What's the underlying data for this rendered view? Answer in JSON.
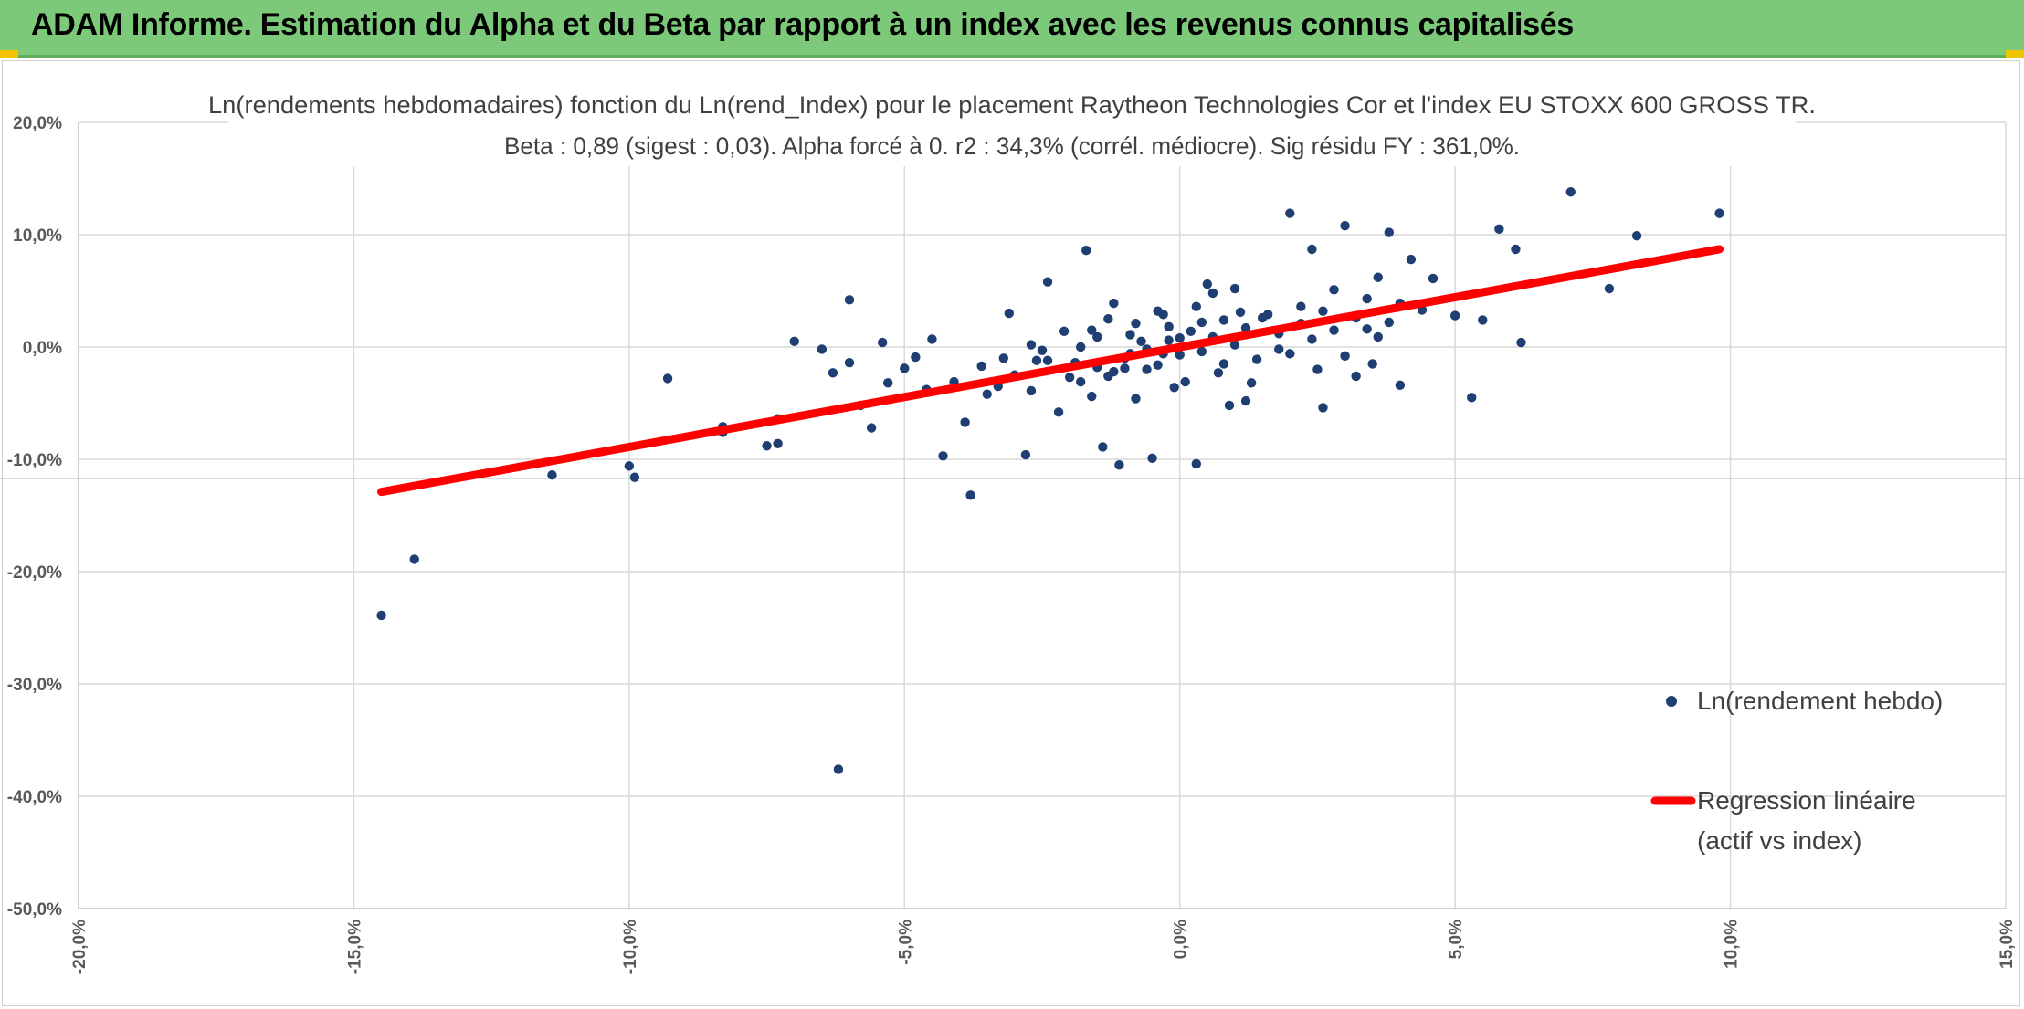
{
  "banner": {
    "title": "ADAM Informe. Estimation du Alpha et du Beta par rapport à un index avec les revenus connus capitalisés"
  },
  "colors": {
    "banner": "#7dc97a",
    "points": "#1f3f73",
    "regression": "#ff0000",
    "grid": "#d9d9d9",
    "axis_text": "#595959"
  },
  "chart_data": {
    "type": "scatter",
    "title": "Ln(rendements hebdomadaires) fonction du Ln(rend_Index) pour le placement Raytheon Technologies Cor et l'index EU STOXX 600 GROSS TR.",
    "subtitle": "Beta : 0,89 (sigest : 0,03). Alpha forcé à 0. r2 : 34,3% (corrél. médiocre). Sig résidu FY : 361,0%.",
    "xlabel": "",
    "ylabel": "",
    "xlim": [
      -20,
      15
    ],
    "ylim": [
      -50,
      20
    ],
    "x_ticks": [
      -20,
      -15,
      -10,
      -5,
      0,
      5,
      10,
      15
    ],
    "y_ticks": [
      20,
      10,
      0,
      -10,
      -20,
      -30,
      -40,
      -50
    ],
    "x_tick_labels": [
      "-20,0%",
      "-15,0%",
      "-10,0%",
      "-5,0%",
      "0,0%",
      "5,0%",
      "10,0%",
      "15,0%"
    ],
    "y_tick_labels": [
      "20,0%",
      "10,0%",
      "0,0%",
      "-10,0%",
      "-20,0%",
      "-30,0%",
      "-40,0%",
      "-50,0%"
    ],
    "grid": true,
    "legend_position": "right",
    "reference_line_y": -11.7,
    "series": [
      {
        "name": "Ln(rendement hebdo)",
        "kind": "scatter",
        "color": "#1f3f73",
        "points": [
          [
            -14.5,
            -23.9
          ],
          [
            -13.9,
            -18.9
          ],
          [
            -11.4,
            -11.4
          ],
          [
            -10.0,
            -10.6
          ],
          [
            -9.9,
            -11.6
          ],
          [
            -9.3,
            -2.8
          ],
          [
            -8.3,
            -7.6
          ],
          [
            -8.3,
            -7.1
          ],
          [
            -7.5,
            -8.8
          ],
          [
            -7.3,
            -8.6
          ],
          [
            -7.3,
            -6.4
          ],
          [
            -7.0,
            0.5
          ],
          [
            -6.5,
            -0.2
          ],
          [
            -6.3,
            -2.3
          ],
          [
            -6.2,
            -37.6
          ],
          [
            -6.0,
            4.2
          ],
          [
            -6.0,
            -1.4
          ],
          [
            -5.8,
            -5.2
          ],
          [
            -5.6,
            -7.2
          ],
          [
            -5.4,
            0.4
          ],
          [
            -5.3,
            -3.2
          ],
          [
            -5.0,
            -1.9
          ],
          [
            -4.8,
            -0.9
          ],
          [
            -4.6,
            -3.8
          ],
          [
            -4.5,
            0.7
          ],
          [
            -4.3,
            -9.7
          ],
          [
            -4.1,
            -3.1
          ],
          [
            -3.9,
            -6.7
          ],
          [
            -3.8,
            -13.2
          ],
          [
            -3.6,
            -1.7
          ],
          [
            -3.5,
            -4.2
          ],
          [
            -3.3,
            -3.5
          ],
          [
            -3.1,
            3.0
          ],
          [
            -3.0,
            -2.5
          ],
          [
            -2.8,
            -9.6
          ],
          [
            -2.7,
            -3.9
          ],
          [
            -2.6,
            -1.2
          ],
          [
            -2.5,
            -0.3
          ],
          [
            -2.4,
            5.8
          ],
          [
            -2.2,
            -5.8
          ],
          [
            -2.1,
            1.4
          ],
          [
            -2.0,
            -2.7
          ],
          [
            -1.9,
            -1.4
          ],
          [
            -1.8,
            0.0
          ],
          [
            -1.7,
            8.6
          ],
          [
            -1.6,
            -4.4
          ],
          [
            -1.5,
            -1.8
          ],
          [
            -1.4,
            -8.9
          ],
          [
            -1.3,
            2.5
          ],
          [
            -1.2,
            -2.2
          ],
          [
            -1.1,
            -10.5
          ],
          [
            -1.0,
            -1.0
          ],
          [
            -0.9,
            1.1
          ],
          [
            -0.8,
            -4.6
          ],
          [
            -0.7,
            0.5
          ],
          [
            -0.6,
            -2.0
          ],
          [
            -0.5,
            -9.9
          ],
          [
            -0.4,
            3.2
          ],
          [
            -0.3,
            -0.6
          ],
          [
            -0.2,
            1.8
          ],
          [
            0.0,
            0.8
          ],
          [
            0.1,
            -3.1
          ],
          [
            0.3,
            -10.4
          ],
          [
            0.4,
            2.2
          ],
          [
            0.6,
            4.8
          ],
          [
            0.8,
            -1.5
          ],
          [
            1.0,
            5.2
          ],
          [
            1.2,
            -4.8
          ],
          [
            1.5,
            2.6
          ],
          [
            1.8,
            -0.2
          ],
          [
            2.0,
            11.9
          ],
          [
            2.2,
            3.6
          ],
          [
            2.4,
            8.7
          ],
          [
            2.6,
            -5.4
          ],
          [
            2.8,
            5.1
          ],
          [
            3.0,
            10.8
          ],
          [
            3.2,
            -2.6
          ],
          [
            3.4,
            1.6
          ],
          [
            3.6,
            6.2
          ],
          [
            3.8,
            10.2
          ],
          [
            4.0,
            -3.4
          ],
          [
            4.2,
            7.8
          ],
          [
            4.4,
            3.3
          ],
          [
            4.6,
            6.1
          ],
          [
            5.0,
            2.8
          ],
          [
            5.3,
            -4.5
          ],
          [
            5.5,
            2.4
          ],
          [
            5.8,
            10.5
          ],
          [
            6.1,
            8.7
          ],
          [
            6.2,
            0.4
          ],
          [
            7.1,
            13.8
          ],
          [
            7.8,
            5.2
          ],
          [
            8.3,
            9.9
          ],
          [
            9.8,
            11.9
          ],
          [
            -2.4,
            -1.2
          ],
          [
            -1.8,
            -3.1
          ],
          [
            -1.5,
            0.9
          ],
          [
            -1.3,
            -2.6
          ],
          [
            -1.0,
            -1.9
          ],
          [
            -0.8,
            2.1
          ],
          [
            -0.6,
            -0.2
          ],
          [
            -0.4,
            -1.6
          ],
          [
            -0.2,
            0.6
          ],
          [
            0.0,
            -0.7
          ],
          [
            0.2,
            1.4
          ],
          [
            0.4,
            -0.4
          ],
          [
            0.6,
            0.9
          ],
          [
            0.8,
            2.4
          ],
          [
            1.0,
            0.2
          ],
          [
            1.2,
            1.7
          ],
          [
            1.4,
            -1.1
          ],
          [
            1.6,
            2.9
          ],
          [
            1.8,
            1.2
          ],
          [
            2.0,
            -0.6
          ],
          [
            2.2,
            2.1
          ],
          [
            2.4,
            0.7
          ],
          [
            2.6,
            3.2
          ],
          [
            2.8,
            1.5
          ],
          [
            3.0,
            -0.8
          ],
          [
            3.2,
            2.6
          ],
          [
            3.4,
            4.3
          ],
          [
            3.6,
            0.9
          ],
          [
            3.8,
            2.2
          ],
          [
            4.0,
            3.9
          ],
          [
            -0.1,
            -3.6
          ],
          [
            0.3,
            3.6
          ],
          [
            0.7,
            -2.3
          ],
          [
            1.1,
            3.1
          ],
          [
            -0.9,
            -0.6
          ],
          [
            -1.6,
            1.5
          ],
          [
            -2.7,
            0.2
          ],
          [
            -3.2,
            -1.0
          ],
          [
            0.5,
            5.6
          ],
          [
            1.3,
            -3.2
          ],
          [
            2.5,
            -2.0
          ],
          [
            -0.3,
            2.9
          ],
          [
            0.9,
            -5.2
          ],
          [
            -1.2,
            3.9
          ],
          [
            3.5,
            -1.5
          ]
        ]
      },
      {
        "name": "Regression linéaire (actif vs index)",
        "kind": "line",
        "color": "#ff0000",
        "x": [
          -14.5,
          9.8
        ],
        "y": [
          -12.9,
          8.7
        ]
      }
    ]
  }
}
